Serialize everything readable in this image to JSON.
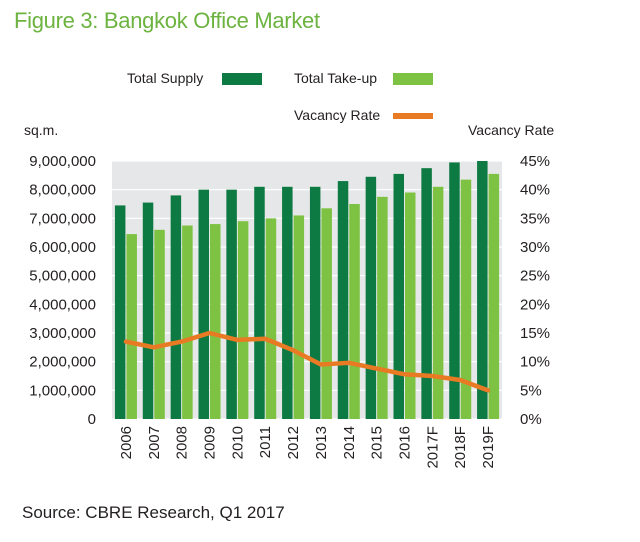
{
  "title": "Figure 3: Bangkok Office Market",
  "source": "Source: CBRE Research, Q1 2017",
  "colors": {
    "title": "#6cb33f",
    "supply": "#0e7a43",
    "takeup": "#7dc242",
    "vacancy": "#e87a24",
    "plot_bg": "#e6e7e8"
  },
  "chart_data": {
    "type": "bar",
    "categories": [
      "2006",
      "2007",
      "2008",
      "2009",
      "2010",
      "2011",
      "2012",
      "2013",
      "2014",
      "2015",
      "2016",
      "2017F",
      "2018F",
      "2019F"
    ],
    "series": [
      {
        "name": "Total Supply",
        "type": "bar",
        "axis": "left",
        "values": [
          7450000,
          7550000,
          7800000,
          8000000,
          8000000,
          8100000,
          8100000,
          8100000,
          8300000,
          8450000,
          8550000,
          8750000,
          8950000,
          9000000
        ]
      },
      {
        "name": "Total Take-up",
        "type": "bar",
        "axis": "left",
        "values": [
          6450000,
          6600000,
          6750000,
          6800000,
          6900000,
          7000000,
          7100000,
          7350000,
          7500000,
          7750000,
          7900000,
          8100000,
          8350000,
          8550000
        ]
      },
      {
        "name": "Vacancy Rate",
        "type": "line",
        "axis": "right",
        "values": [
          13.5,
          12.5,
          13.5,
          15.0,
          13.8,
          14.0,
          12.0,
          9.5,
          9.8,
          8.8,
          7.8,
          7.5,
          6.8,
          5.0
        ]
      }
    ],
    "ylabel_left": "sq.m.",
    "ylabel_right": "Vacancy Rate",
    "ylim_left": [
      0,
      9000000
    ],
    "ylim_right": [
      0,
      45
    ],
    "yticks_left": [
      "0",
      "1,000,000",
      "2,000,000",
      "3,000,000",
      "4,000,000",
      "5,000,000",
      "6,000,000",
      "7,000,000",
      "8,000,000",
      "9,000,000"
    ],
    "yticks_right": [
      "0%",
      "5%",
      "10%",
      "15%",
      "20%",
      "25%",
      "30%",
      "35%",
      "40%",
      "45%"
    ],
    "legend": [
      "Total Supply",
      "Total Take-up",
      "Vacancy Rate"
    ]
  }
}
